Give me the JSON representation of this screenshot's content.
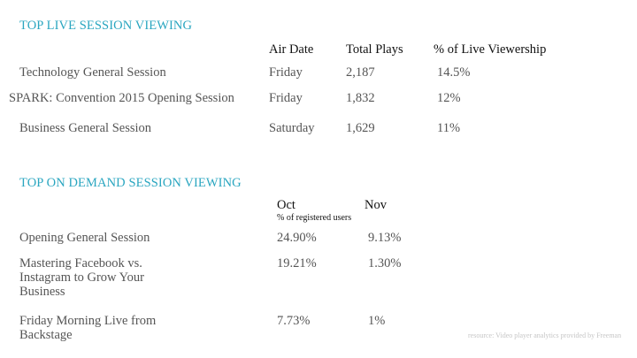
{
  "live": {
    "heading": "TOP LIVE SESSION VIEWING",
    "columns": {
      "air_date": "Air Date",
      "total_plays": "Total Plays",
      "pct": "% of Live Viewership"
    },
    "rows": [
      {
        "session": "Technology General Session",
        "air_date": "Friday",
        "plays": "2,187",
        "pct": "14.5%"
      },
      {
        "session": "SPARK: Convention 2015 Opening Session",
        "air_date": "Friday",
        "plays": "1,832",
        "pct": "12%"
      },
      {
        "session": "Business General Session",
        "air_date": "Saturday",
        "plays": "1,629",
        "pct": "11%"
      }
    ]
  },
  "on_demand": {
    "heading": "TOP ON DEMAND SESSION VIEWING",
    "columns": {
      "oct": "Oct",
      "oct_sub": "% of registered users",
      "nov": "Nov"
    },
    "rows": [
      {
        "session": "Opening General Session",
        "oct": "24.90%",
        "nov": "9.13%"
      },
      {
        "session": "Mastering Facebook vs. Instagram to Grow Your Business",
        "oct": "19.21%",
        "nov": "1.30%"
      },
      {
        "session": "Friday Morning Live from Backstage",
        "oct": "7.73%",
        "nov": "1%"
      }
    ]
  },
  "source_note": "resource: Video player analytics provided by Freeman"
}
